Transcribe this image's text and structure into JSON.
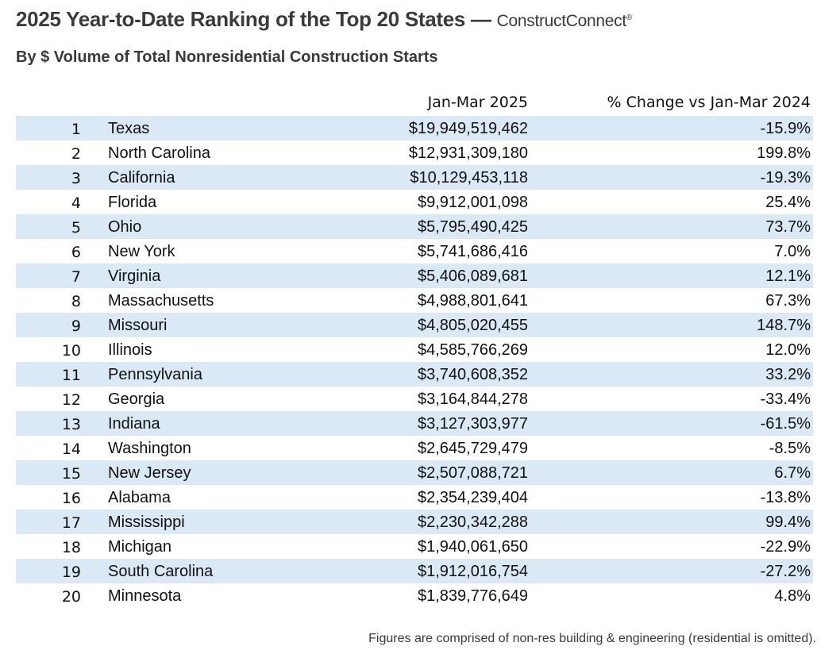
{
  "title": {
    "main": "2025 Year-to-Date Ranking of the Top 20 States — ",
    "brand": "ConstructConnect",
    "brand_mark": "®"
  },
  "subtitle": "By $ Volume of Total Nonresidential Construction Starts",
  "table": {
    "headers": {
      "value": "Jan-Mar 2025",
      "change": "% Change vs Jan-Mar 2024"
    },
    "rows": [
      {
        "rank": "1",
        "state": "Texas",
        "value": "$19,949,519,462",
        "change": "-15.9%"
      },
      {
        "rank": "2",
        "state": "North Carolina",
        "value": "$12,931,309,180",
        "change": "199.8%"
      },
      {
        "rank": "3",
        "state": "California",
        "value": "$10,129,453,118",
        "change": "-19.3%"
      },
      {
        "rank": "4",
        "state": "Florida",
        "value": "$9,912,001,098",
        "change": "25.4%"
      },
      {
        "rank": "5",
        "state": "Ohio",
        "value": "$5,795,490,425",
        "change": "73.7%"
      },
      {
        "rank": "6",
        "state": "New York",
        "value": "$5,741,686,416",
        "change": "7.0%"
      },
      {
        "rank": "7",
        "state": "Virginia",
        "value": "$5,406,089,681",
        "change": "12.1%"
      },
      {
        "rank": "8",
        "state": "Massachusetts",
        "value": "$4,988,801,641",
        "change": "67.3%"
      },
      {
        "rank": "9",
        "state": "Missouri",
        "value": "$4,805,020,455",
        "change": "148.7%"
      },
      {
        "rank": "10",
        "state": "Illinois",
        "value": "$4,585,766,269",
        "change": "12.0%"
      },
      {
        "rank": "11",
        "state": "Pennsylvania",
        "value": "$3,740,608,352",
        "change": "33.2%"
      },
      {
        "rank": "12",
        "state": "Georgia",
        "value": "$3,164,844,278",
        "change": "-33.4%"
      },
      {
        "rank": "13",
        "state": "Indiana",
        "value": "$3,127,303,977",
        "change": "-61.5%"
      },
      {
        "rank": "14",
        "state": "Washington",
        "value": "$2,645,729,479",
        "change": "-8.5%"
      },
      {
        "rank": "15",
        "state": "New Jersey",
        "value": "$2,507,088,721",
        "change": "6.7%"
      },
      {
        "rank": "16",
        "state": "Alabama",
        "value": "$2,354,239,404",
        "change": "-13.8%"
      },
      {
        "rank": "17",
        "state": "Mississippi",
        "value": "$2,230,342,288",
        "change": "99.4%"
      },
      {
        "rank": "18",
        "state": "Michigan",
        "value": "$1,940,061,650",
        "change": "-22.9%"
      },
      {
        "rank": "19",
        "state": "South Carolina",
        "value": "$1,912,016,754",
        "change": "-27.2%"
      },
      {
        "rank": "20",
        "state": "Minnesota",
        "value": "$1,839,776,649",
        "change": "4.8%"
      }
    ]
  },
  "footnote": "Figures are comprised of non-res building & engineering (residential is omitted).",
  "colors": {
    "stripe": "#dbe8f5",
    "heading_text": "#3a3a3a"
  }
}
